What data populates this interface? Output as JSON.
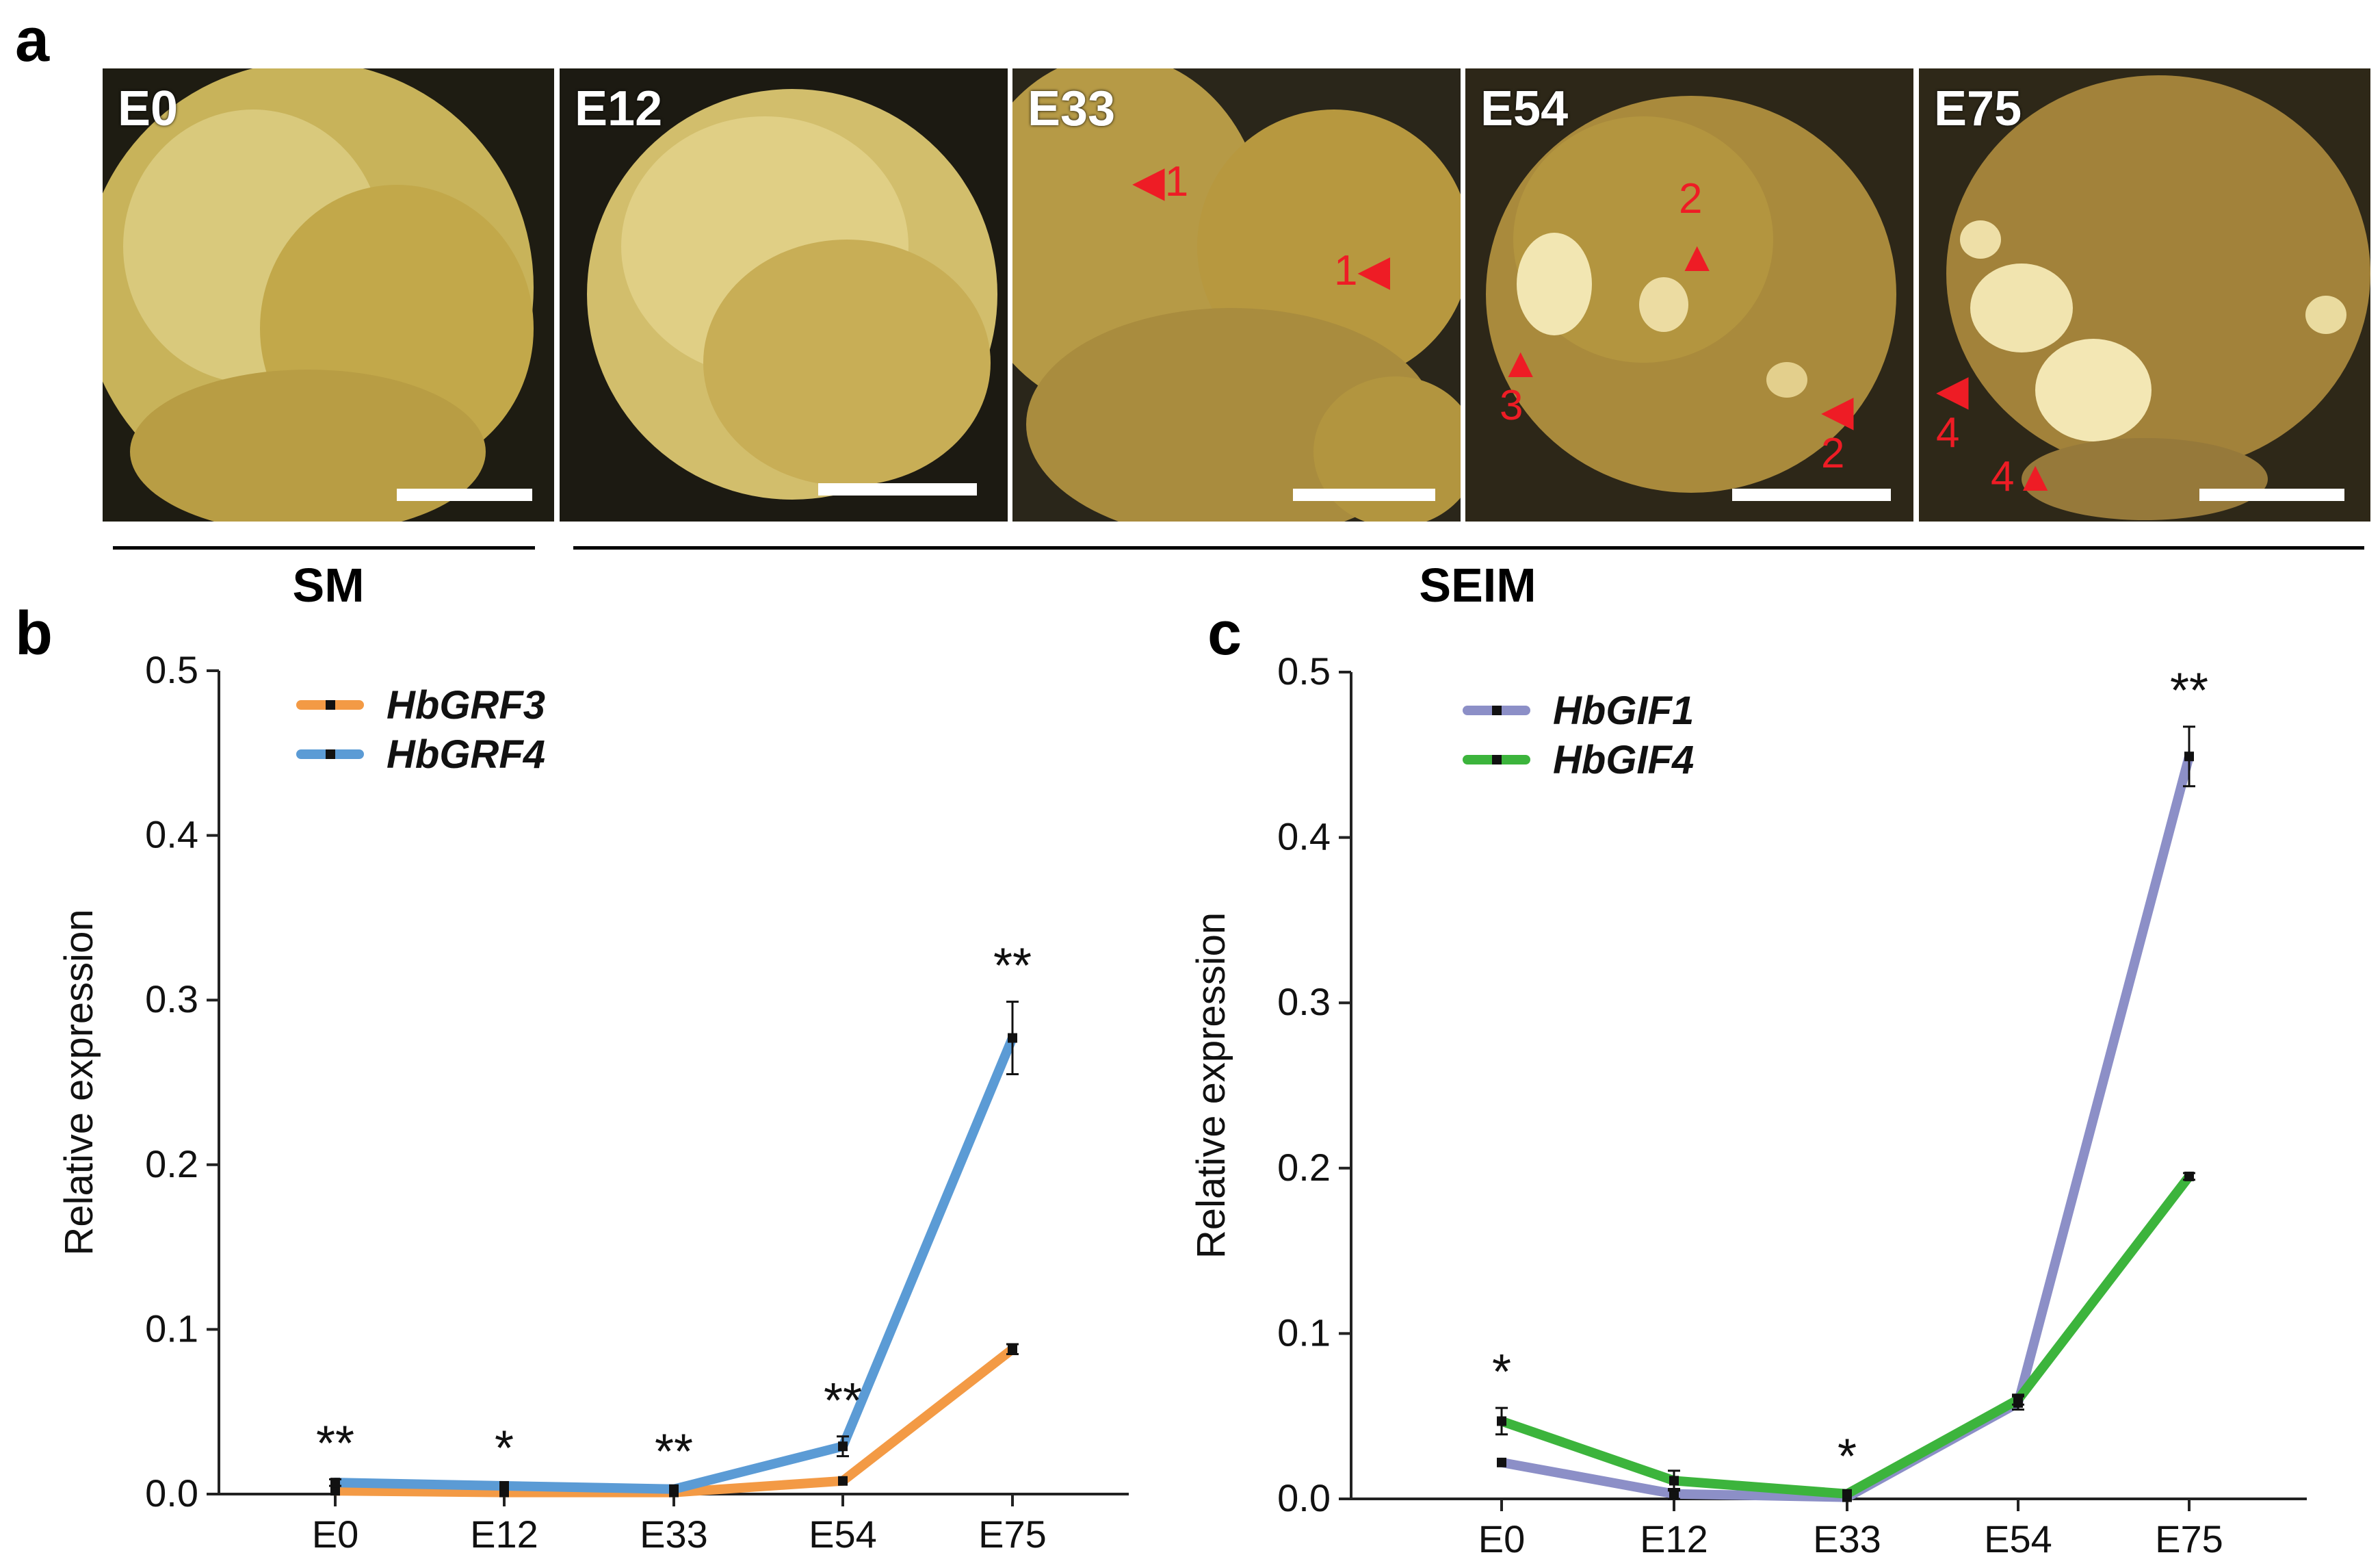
{
  "panels": {
    "a": "a",
    "b": "b",
    "c": "c"
  },
  "photos": [
    {
      "label": "E0",
      "arrows": []
    },
    {
      "label": "E12",
      "arrows": []
    },
    {
      "label": "E33",
      "arrows": [
        "1",
        "1"
      ]
    },
    {
      "label": "E54",
      "arrows": [
        "2",
        "3",
        "2"
      ]
    },
    {
      "label": "E75",
      "arrows": [
        "4",
        "4"
      ]
    }
  ],
  "groups": {
    "sm": "SM",
    "seim": "SEIM"
  },
  "colors": {
    "hbgrf3": "#f39a45",
    "hbgrf4": "#5b9bd5",
    "hbgif1": "#8c8fc7",
    "hbgif4": "#3cb43c"
  },
  "chart_data": [
    {
      "type": "line",
      "panel": "b",
      "xlabel": "",
      "ylabel": "Relative  expression",
      "ylim": [
        0,
        0.5
      ],
      "yticks": [
        "0.0",
        "0.1",
        "0.2",
        "0.3",
        "0.4",
        "0.5"
      ],
      "categories": [
        "E0",
        "E12",
        "E33",
        "E54",
        "E75"
      ],
      "legend_position": "top-left",
      "series": [
        {
          "name": "HbGRF3",
          "color": "#f39a45",
          "values": [
            0.002,
            0.001,
            0.001,
            0.008,
            0.088
          ],
          "errors": [
            0.001,
            0.001,
            0.001,
            0.001,
            0.003
          ]
        },
        {
          "name": "HbGRF4",
          "color": "#5b9bd5",
          "values": [
            0.007,
            0.005,
            0.003,
            0.029,
            0.277
          ],
          "errors": [
            0.002,
            0.001,
            0.001,
            0.006,
            0.022
          ]
        }
      ],
      "annotations": [
        "**",
        "*",
        "**",
        "**",
        "**"
      ]
    },
    {
      "type": "line",
      "panel": "c",
      "xlabel": "",
      "ylabel": "Relative  expression",
      "ylim": [
        0,
        0.5
      ],
      "yticks": [
        "0.0",
        "0.1",
        "0.2",
        "0.3",
        "0.4",
        "0.5"
      ],
      "categories": [
        "E0",
        "E12",
        "E33",
        "E54",
        "E75"
      ],
      "legend_position": "top-left",
      "series": [
        {
          "name": "HbGIF1",
          "color": "#8c8fc7",
          "values": [
            0.022,
            0.003,
            0.001,
            0.058,
            0.449
          ],
          "errors": [
            0.001,
            0.003,
            0.001,
            0.004,
            0.018
          ]
        },
        {
          "name": "HbGIF4",
          "color": "#3cb43c",
          "values": [
            0.047,
            0.011,
            0.003,
            0.06,
            0.195
          ],
          "errors": [
            0.008,
            0.006,
            0.001,
            0.003,
            0.002
          ]
        }
      ],
      "annotations": [
        "*",
        "",
        "*",
        "",
        "**"
      ]
    }
  ]
}
